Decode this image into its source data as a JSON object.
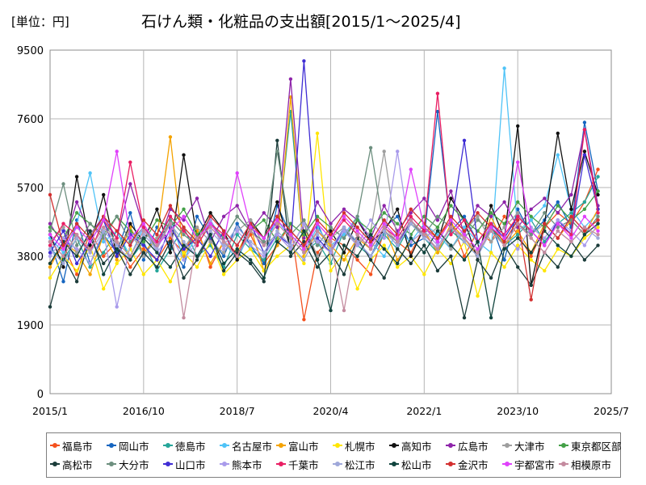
{
  "header": {
    "unit_label": "[単位：円]",
    "title": "石けん類・化粧品の支出額[2015/1～2025/4]"
  },
  "chart_data": {
    "type": "line",
    "title": "石けん類・化粧品の支出額[2015/1～2025/4]",
    "unit": "[単位：円]",
    "x_ticks": [
      "2015/1",
      "2016/10",
      "2018/7",
      "2020/4",
      "2022/1",
      "2023/10",
      "2025/7"
    ],
    "x_range": [
      "2015/1",
      "2025/7"
    ],
    "y_ticks": [
      0,
      1900,
      3800,
      5700,
      7600,
      9500
    ],
    "ylim": [
      0,
      9500
    ],
    "grid": true,
    "legend_position": "bottom",
    "x": [
      "2015/1",
      "2015/4",
      "2015/7",
      "2015/10",
      "2016/1",
      "2016/4",
      "2016/7",
      "2016/10",
      "2017/1",
      "2017/4",
      "2017/7",
      "2017/10",
      "2018/1",
      "2018/4",
      "2018/7",
      "2018/10",
      "2019/1",
      "2019/4",
      "2019/7",
      "2019/10",
      "2020/1",
      "2020/4",
      "2020/7",
      "2020/10",
      "2021/1",
      "2021/4",
      "2021/7",
      "2021/10",
      "2022/1",
      "2022/4",
      "2022/7",
      "2022/10",
      "2023/1",
      "2023/4",
      "2023/7",
      "2023/10",
      "2024/1",
      "2024/4",
      "2024/7",
      "2024/10",
      "2025/1",
      "2025/4"
    ],
    "series": [
      {
        "name": "福島市",
        "color": "#F4511E",
        "values": [
          3600,
          4100,
          3300,
          4500,
          3800,
          4200,
          3500,
          4000,
          3700,
          4300,
          3900,
          4600,
          3500,
          4200,
          3800,
          4400,
          3600,
          4100,
          4700,
          2050,
          3900,
          4300,
          4100,
          3700,
          3300,
          4500,
          4200,
          3900,
          4600,
          4300,
          4800,
          3800,
          4500,
          4200,
          4900,
          4400,
          3800,
          4600,
          5000,
          4700,
          5300,
          6200
        ]
      },
      {
        "name": "岡山市",
        "color": "#1565C0",
        "values": [
          4200,
          3100,
          4800,
          3600,
          4400,
          3900,
          5000,
          3700,
          4600,
          4100,
          3500,
          4900,
          4300,
          3800,
          4700,
          4100,
          3600,
          5200,
          4400,
          4000,
          4700,
          3900,
          4500,
          4200,
          3800,
          4600,
          4900,
          4100,
          4300,
          7800,
          4500,
          4900,
          4200,
          4700,
          3700,
          5100,
          4400,
          4800,
          5300,
          4600,
          7500,
          5600
        ]
      },
      {
        "name": "徳島市",
        "color": "#26A69A",
        "values": [
          4000,
          3700,
          4300,
          3500,
          3900,
          4500,
          3700,
          4200,
          3400,
          4000,
          4600,
          3800,
          4100,
          3500,
          4400,
          4000,
          3700,
          4300,
          7800,
          3900,
          4200,
          3600,
          4500,
          4100,
          3800,
          4400,
          4000,
          4700,
          4300,
          3900,
          4500,
          4200,
          3800,
          4600,
          4100,
          4400,
          4800,
          4200,
          4700,
          5000,
          5300,
          6000
        ]
      },
      {
        "name": "名古屋市",
        "color": "#4FC3F7",
        "values": [
          4300,
          3900,
          4700,
          6100,
          4200,
          4500,
          3800,
          4600,
          4100,
          4900,
          3700,
          4400,
          4800,
          4200,
          3700,
          4500,
          4100,
          4800,
          4300,
          3900,
          4600,
          4100,
          4400,
          4900,
          4200,
          3800,
          4500,
          4200,
          4700,
          4400,
          4000,
          4600,
          4200,
          3900,
          9000,
          4500,
          4800,
          5200,
          6600,
          5100,
          4600,
          5000
        ]
      },
      {
        "name": "富山市",
        "color": "#F4A300",
        "values": [
          3500,
          4200,
          3900,
          3300,
          4400,
          3700,
          4600,
          3900,
          4300,
          7100,
          3800,
          4500,
          3600,
          4200,
          3900,
          4600,
          3400,
          4100,
          8200,
          3800,
          4500,
          4100,
          3700,
          4300,
          4000,
          4600,
          3700,
          4200,
          4500,
          3900,
          4700,
          4300,
          3800,
          4900,
          4100,
          4500,
          3900,
          4700,
          4300,
          4800,
          4400,
          5100
        ]
      },
      {
        "name": "札幌市",
        "color": "#FFE600",
        "values": [
          3200,
          3800,
          3400,
          4100,
          2900,
          3600,
          4000,
          3300,
          3700,
          3100,
          3900,
          3500,
          4200,
          3300,
          3700,
          4000,
          3400,
          3800,
          4100,
          3600,
          7200,
          3400,
          3900,
          2900,
          3700,
          4100,
          3500,
          3800,
          3300,
          4000,
          3600,
          4200,
          2700,
          3900,
          3500,
          4100,
          3700,
          3400,
          4000,
          3800,
          4300,
          4600
        ]
      },
      {
        "name": "高知市",
        "color": "#111111",
        "values": [
          4400,
          3500,
          6000,
          4100,
          5500,
          3800,
          4700,
          4200,
          5100,
          3900,
          6600,
          4300,
          5000,
          4500,
          3700,
          4800,
          4300,
          5300,
          4000,
          4700,
          3700,
          4500,
          3900,
          4800,
          4200,
          4500,
          5100,
          3800,
          4600,
          4200,
          5400,
          4800,
          3700,
          5200,
          4300,
          7400,
          3000,
          4700,
          7200,
          5100,
          6700,
          5500
        ]
      },
      {
        "name": "広島市",
        "color": "#8E24AA",
        "values": [
          4700,
          4100,
          5300,
          4400,
          4900,
          4300,
          5800,
          4600,
          4000,
          5100,
          4800,
          5400,
          4200,
          4900,
          5200,
          4500,
          5000,
          4600,
          8700,
          4300,
          5300,
          4700,
          5100,
          4800,
          4300,
          5200,
          4500,
          5000,
          5400,
          4800,
          5600,
          4400,
          5200,
          4900,
          5300,
          4600,
          5100,
          5400,
          5000,
          5500,
          7300,
          5200
        ]
      },
      {
        "name": "大津市",
        "color": "#9E9E9E",
        "values": [
          4200,
          4600,
          3900,
          4400,
          4800,
          4100,
          4500,
          3800,
          4300,
          4700,
          4000,
          4600,
          4200,
          3900,
          4500,
          4800,
          4100,
          4400,
          4000,
          4700,
          3800,
          4300,
          4600,
          4100,
          4500,
          6700,
          4200,
          4800,
          4300,
          4600,
          4000,
          4500,
          4900,
          4200,
          4600,
          5000,
          4400,
          4700,
          4300,
          4900,
          4500,
          4800
        ]
      },
      {
        "name": "東京都区部",
        "color": "#43A047",
        "values": [
          4600,
          4300,
          5000,
          4700,
          4400,
          4900,
          4500,
          4200,
          4800,
          4600,
          5100,
          4400,
          4700,
          4300,
          4900,
          4500,
          4800,
          4200,
          4700,
          4400,
          4900,
          4600,
          4300,
          4800,
          4500,
          5000,
          4700,
          4400,
          4900,
          4600,
          5200,
          4800,
          4500,
          5000,
          4700,
          5300,
          4900,
          4600,
          5200,
          4800,
          5100,
          5600
        ]
      },
      {
        "name": "高松市",
        "color": "#1B3C3A",
        "values": [
          2400,
          3800,
          3100,
          4300,
          3600,
          4000,
          3300,
          3900,
          3500,
          4200,
          3200,
          3700,
          4400,
          3400,
          3900,
          3600,
          3100,
          7000,
          3800,
          4200,
          3500,
          3900,
          3300,
          4300,
          3700,
          3200,
          4000,
          3600,
          4100,
          3400,
          3800,
          2100,
          3700,
          3200,
          4100,
          3500,
          3000,
          3900,
          3500,
          4200,
          3700,
          4100
        ]
      },
      {
        "name": "大分市",
        "color": "#6D8F7F",
        "values": [
          4500,
          5800,
          4100,
          4700,
          4300,
          4900,
          4200,
          4600,
          4000,
          4800,
          4400,
          4100,
          4700,
          4300,
          4900,
          4500,
          4200,
          6700,
          4400,
          4800,
          4100,
          4600,
          4300,
          4900,
          6800,
          4500,
          4200,
          4700,
          4400,
          4900,
          4600,
          4300,
          4800,
          4500,
          4100,
          4700,
          4400,
          5000,
          4600,
          4800,
          4400,
          4900
        ]
      },
      {
        "name": "山口市",
        "color": "#3F2DD4",
        "values": [
          3900,
          4500,
          3600,
          4200,
          4800,
          3800,
          4400,
          4100,
          3700,
          4600,
          4000,
          4300,
          3800,
          4500,
          4100,
          4700,
          3900,
          4400,
          4100,
          9200,
          4300,
          3900,
          4600,
          4200,
          3800,
          4500,
          4100,
          4800,
          4400,
          4000,
          4600,
          7000,
          4200,
          4700,
          4300,
          4900,
          4500,
          4100,
          4800,
          4400,
          6600,
          5100
        ]
      },
      {
        "name": "熊本市",
        "color": "#A99BEB",
        "values": [
          3800,
          4300,
          4000,
          3600,
          4500,
          2400,
          4100,
          4600,
          3900,
          4400,
          3700,
          4200,
          4800,
          4000,
          4500,
          4100,
          3800,
          4400,
          4000,
          4700,
          4200,
          3900,
          4500,
          4100,
          4800,
          4300,
          6700,
          4200,
          4500,
          4100,
          4600,
          4300,
          3900,
          4700,
          4400,
          4000,
          4600,
          4300,
          4800,
          4500,
          4100,
          4700
        ]
      },
      {
        "name": "千葉市",
        "color": "#E91E63",
        "values": [
          4100,
          4700,
          4400,
          3900,
          4800,
          4300,
          6400,
          4600,
          4200,
          4900,
          4500,
          4100,
          4700,
          4400,
          3800,
          4600,
          4300,
          4900,
          4500,
          4100,
          4700,
          4300,
          4800,
          4400,
          4000,
          4600,
          4300,
          4900,
          4500,
          8300,
          4400,
          4800,
          4200,
          4700,
          4400,
          4900,
          4500,
          4100,
          4700,
          4400,
          7300,
          5000
        ]
      },
      {
        "name": "松江市",
        "color": "#9FA8DA",
        "values": [
          4000,
          3600,
          4300,
          3900,
          4500,
          4100,
          3700,
          4400,
          4000,
          4700,
          4200,
          3800,
          4500,
          4100,
          4600,
          4200,
          3900,
          4500,
          4100,
          3700,
          4400,
          4000,
          4600,
          4200,
          3800,
          4500,
          4100,
          4700,
          4300,
          4000,
          4600,
          4200,
          3800,
          4500,
          4100,
          4700,
          4300,
          3900,
          4500,
          4200,
          4600,
          4300
        ]
      },
      {
        "name": "松山市",
        "color": "#10443D",
        "values": [
          3600,
          4200,
          3800,
          4500,
          3300,
          4000,
          3700,
          4300,
          3900,
          3500,
          4100,
          3800,
          4400,
          3600,
          4000,
          3700,
          3200,
          4200,
          3900,
          4500,
          3700,
          2300,
          4100,
          3800,
          4400,
          4000,
          3600,
          4300,
          3900,
          4500,
          4100,
          3700,
          4200,
          2100,
          4000,
          4300,
          3900,
          4500,
          4100,
          3800,
          4400,
          4700
        ]
      },
      {
        "name": "金沢市",
        "color": "#D32F2F",
        "values": [
          5500,
          4100,
          4700,
          4300,
          4900,
          4500,
          4100,
          4800,
          4400,
          5200,
          4600,
          4200,
          4900,
          4500,
          4100,
          4700,
          4300,
          4900,
          4500,
          4100,
          4800,
          4400,
          5000,
          4600,
          4200,
          4800,
          4400,
          5100,
          4700,
          4300,
          4900,
          4500,
          5000,
          4600,
          4200,
          4800,
          2600,
          4700,
          4300,
          4900,
          4500,
          4800
        ]
      },
      {
        "name": "宇都宮市",
        "color": "#E040FB",
        "values": [
          4400,
          4000,
          4600,
          4200,
          4800,
          6700,
          4300,
          4700,
          4100,
          4500,
          4900,
          4300,
          4700,
          4200,
          6100,
          4600,
          4300,
          4800,
          4400,
          4000,
          4700,
          4300,
          4900,
          4500,
          4100,
          4700,
          4300,
          6200,
          4600,
          4200,
          4800,
          4400,
          4000,
          4600,
          4300,
          6400,
          4500,
          4100,
          4700,
          4300,
          4900,
          4500
        ]
      },
      {
        "name": "相模原市",
        "color": "#C48B9F",
        "values": [
          4200,
          3800,
          4400,
          4000,
          4600,
          4200,
          3800,
          4500,
          4100,
          4700,
          2100,
          4300,
          4600,
          4200,
          3800,
          4500,
          4100,
          4700,
          4300,
          3900,
          4500,
          4200,
          2300,
          4400,
          4000,
          4600,
          4200,
          4800,
          4400,
          4000,
          4600,
          4300,
          3900,
          4500,
          4100,
          4700,
          4300,
          3900,
          4500,
          4200,
          4600,
          4400
        ]
      }
    ]
  }
}
